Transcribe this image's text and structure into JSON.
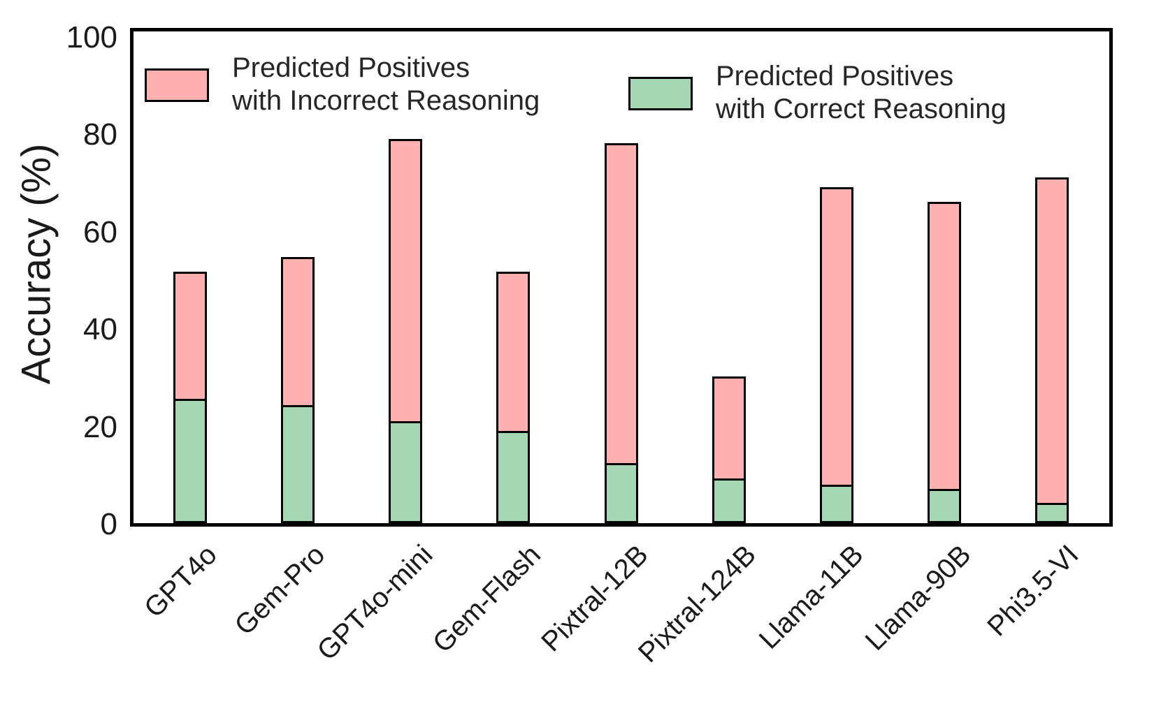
{
  "figure": {
    "background": "#ffffff",
    "text_color": "#1a1a1a",
    "edge_color": "#000000"
  },
  "chart_data": {
    "type": "bar",
    "subtype": "stacked",
    "title": "",
    "xlabel": "",
    "ylabel": "Accuracy (%)",
    "categories": [
      "GPT4o",
      "Gem-Pro",
      "GPT4o-mini",
      "Gem-Flash",
      "Pixtral-12B",
      "Pixtral-124B",
      "Llama-11B",
      "Llama-90B",
      "Phi3.5-VI"
    ],
    "series": [
      {
        "name": "Predicted Positives\nwith Correct Reasoning",
        "color": "#a5d7b5",
        "values": [
          25.6,
          24.3,
          21.0,
          18.9,
          12.3,
          9.2,
          7.9,
          7.0,
          4.1
        ]
      },
      {
        "name": "Predicted Positives\nwith Incorrect Reasoning",
        "color": "#ffb1b1",
        "values": [
          26.0,
          30.4,
          57.9,
          32.7,
          65.8,
          21.0,
          61.1,
          59.0,
          66.9
        ]
      }
    ],
    "stacked_totals": [
      51.6,
      54.7,
      78.9,
      51.6,
      78.1,
      30.2,
      69.0,
      66.0,
      71.0
    ],
    "yticks": [
      0,
      20,
      40,
      60,
      80,
      100
    ],
    "ylim": [
      0,
      101
    ],
    "grid": false,
    "legend_position": "upper, two entries side by side inside plot"
  },
  "legend": {
    "incorrect_label": "Predicted Positives\nwith Incorrect Reasoning",
    "correct_label": "Predicted Positives\nwith Correct Reasoning"
  }
}
